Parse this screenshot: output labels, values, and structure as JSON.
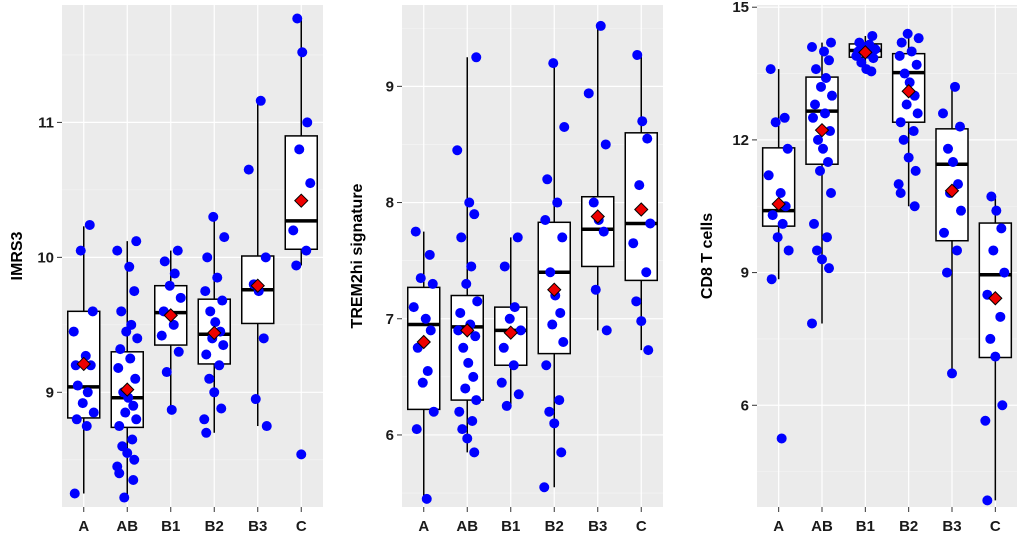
{
  "colors": {
    "points": "#0000ff",
    "mean": "#ee0000",
    "panel": "#ebebeb",
    "box": "#ffffff"
  },
  "chart_data": [
    {
      "type": "boxplot",
      "ylabel": "IMRS3",
      "categories": [
        "A",
        "AB",
        "B1",
        "B2",
        "B3",
        "C"
      ],
      "ylim": [
        8.15,
        11.87
      ],
      "yticks": [
        9,
        10,
        11
      ],
      "grid": true,
      "boxes": [
        {
          "q1": 8.81,
          "median": 9.04,
          "q3": 9.6,
          "min": 8.25,
          "max": 10.23,
          "mean": 9.21
        },
        {
          "q1": 8.74,
          "median": 8.96,
          "q3": 9.3,
          "min": 8.22,
          "max": 10.12,
          "mean": 9.02
        },
        {
          "q1": 9.35,
          "median": 9.59,
          "q3": 9.79,
          "min": 8.87,
          "max": 10.05,
          "mean": 9.57
        },
        {
          "q1": 9.21,
          "median": 9.43,
          "q3": 9.69,
          "min": 8.7,
          "max": 10.3,
          "mean": 9.44
        },
        {
          "q1": 9.51,
          "median": 9.76,
          "q3": 10.01,
          "min": 8.75,
          "max": 11.16,
          "mean": 9.79
        },
        {
          "q1": 10.06,
          "median": 10.27,
          "q3": 10.9,
          "min": 9.94,
          "max": 11.77,
          "mean": 10.42
        }
      ],
      "points": [
        [
          9.2,
          10.24,
          10.05,
          9.6,
          9.45,
          9.27,
          9.2,
          9.05,
          9.0,
          8.92,
          8.85,
          8.8,
          8.75,
          8.25
        ],
        [
          10.12,
          10.05,
          9.93,
          9.75,
          9.6,
          9.5,
          9.45,
          9.4,
          9.32,
          9.25,
          9.18,
          9.1,
          9.0,
          8.96,
          8.9,
          8.85,
          8.8,
          8.75,
          8.65,
          8.6,
          8.55,
          8.5,
          8.45,
          8.4,
          8.35,
          8.22
        ],
        [
          10.05,
          9.97,
          9.88,
          9.79,
          9.7,
          9.6,
          9.5,
          9.42,
          9.3,
          9.15,
          8.87
        ],
        [
          10.3,
          10.15,
          10.0,
          9.85,
          9.75,
          9.68,
          9.6,
          9.52,
          9.45,
          9.4,
          9.35,
          9.28,
          9.2,
          9.1,
          9.0,
          8.88,
          8.8,
          8.7
        ],
        [
          11.16,
          10.65,
          10.0,
          9.8,
          9.75,
          9.4,
          8.95,
          8.75
        ],
        [
          11.77,
          11.52,
          11.0,
          10.8,
          10.55,
          10.2,
          10.05,
          9.94,
          8.54
        ]
      ]
    },
    {
      "type": "boxplot",
      "ylabel": "TREM2hi signature",
      "categories": [
        "A",
        "AB",
        "B1",
        "B2",
        "B3",
        "C"
      ],
      "ylim": [
        5.38,
        9.7
      ],
      "yticks": [
        6,
        7,
        8,
        9
      ],
      "grid": true,
      "boxes": [
        {
          "q1": 6.22,
          "median": 6.95,
          "q3": 7.27,
          "min": 5.45,
          "max": 7.75,
          "mean": 6.8
        },
        {
          "q1": 6.3,
          "median": 6.93,
          "q3": 7.2,
          "min": 5.85,
          "max": 9.25,
          "mean": 6.9
        },
        {
          "q1": 6.6,
          "median": 6.9,
          "q3": 7.1,
          "min": 6.25,
          "max": 7.7,
          "mean": 6.88
        },
        {
          "q1": 6.7,
          "median": 7.4,
          "q3": 7.83,
          "min": 5.55,
          "max": 9.2,
          "mean": 7.25
        },
        {
          "q1": 7.45,
          "median": 7.77,
          "q3": 8.05,
          "min": 6.9,
          "max": 9.52,
          "mean": 7.88
        },
        {
          "q1": 7.33,
          "median": 7.82,
          "q3": 8.6,
          "min": 6.73,
          "max": 9.27,
          "mean": 7.94
        }
      ],
      "points": [
        [
          7.75,
          7.55,
          7.35,
          7.3,
          7.1,
          7.0,
          6.9,
          6.75,
          6.55,
          6.45,
          6.2,
          6.05,
          5.45
        ],
        [
          9.25,
          8.45,
          8.0,
          7.9,
          7.7,
          7.45,
          7.3,
          7.15,
          7.05,
          6.95,
          6.9,
          6.85,
          6.75,
          6.62,
          6.5,
          6.4,
          6.3,
          6.2,
          6.12,
          6.05,
          5.97,
          5.85
        ],
        [
          7.7,
          7.45,
          7.1,
          7.0,
          6.9,
          6.75,
          6.6,
          6.45,
          6.35,
          6.25
        ],
        [
          9.2,
          8.65,
          8.2,
          8.0,
          7.85,
          7.7,
          7.4,
          7.2,
          7.05,
          6.95,
          6.8,
          6.6,
          6.3,
          6.2,
          6.1,
          5.85,
          5.55
        ],
        [
          9.52,
          8.94,
          8.5,
          8.0,
          7.85,
          7.75,
          7.25,
          6.9
        ],
        [
          9.27,
          8.7,
          8.55,
          8.15,
          7.82,
          7.65,
          7.4,
          7.15,
          6.98,
          6.73
        ]
      ]
    },
    {
      "type": "boxplot",
      "ylabel": "CD8 T cells",
      "categories": [
        "A",
        "AB",
        "B1",
        "B2",
        "B3",
        "C"
      ],
      "ylim": [
        3.7,
        15.05
      ],
      "yticks": [
        6,
        9,
        12,
        15
      ],
      "grid": true,
      "boxes": [
        {
          "q1": 10.05,
          "median": 10.4,
          "q3": 11.82,
          "min": 8.85,
          "max": 13.6,
          "mean": 10.55
        },
        {
          "q1": 11.45,
          "median": 12.65,
          "q3": 13.42,
          "min": 7.85,
          "max": 14.2,
          "mean": 12.22
        },
        {
          "q1": 13.87,
          "median": 14.02,
          "q3": 14.17,
          "min": 13.55,
          "max": 14.35,
          "mean": 13.98
        },
        {
          "q1": 12.4,
          "median": 13.52,
          "q3": 13.95,
          "min": 10.5,
          "max": 14.4,
          "mean": 13.1
        },
        {
          "q1": 9.72,
          "median": 11.45,
          "q3": 12.25,
          "min": 6.72,
          "max": 13.2,
          "mean": 10.85
        },
        {
          "q1": 7.08,
          "median": 8.95,
          "q3": 10.12,
          "min": 3.85,
          "max": 10.72,
          "mean": 8.42
        }
      ],
      "points": [
        [
          13.6,
          12.5,
          12.4,
          11.8,
          11.2,
          10.8,
          10.5,
          10.3,
          10.1,
          9.8,
          9.5,
          8.85,
          5.25
        ],
        [
          14.2,
          14.1,
          14.0,
          13.8,
          13.6,
          13.4,
          13.2,
          13.0,
          12.8,
          12.6,
          12.5,
          12.2,
          12.0,
          11.8,
          11.5,
          11.3,
          10.8,
          10.1,
          9.8,
          9.5,
          9.3,
          9.1,
          7.85
        ],
        [
          14.35,
          14.2,
          14.15,
          14.1,
          14.05,
          14.0,
          13.95,
          13.9,
          13.85,
          13.75,
          13.6,
          13.55
        ],
        [
          14.4,
          14.3,
          14.2,
          14.0,
          13.9,
          13.7,
          13.5,
          13.3,
          13.0,
          12.8,
          12.6,
          12.4,
          12.2,
          12.0,
          11.6,
          11.3,
          11.0,
          10.8,
          10.5
        ],
        [
          13.2,
          12.6,
          12.3,
          11.8,
          11.5,
          11.0,
          10.8,
          10.4,
          9.9,
          9.5,
          9.0,
          6.72
        ],
        [
          10.72,
          10.4,
          10.0,
          9.5,
          9.0,
          8.5,
          8.0,
          7.5,
          7.1,
          6.0,
          5.65,
          3.85
        ]
      ]
    }
  ]
}
